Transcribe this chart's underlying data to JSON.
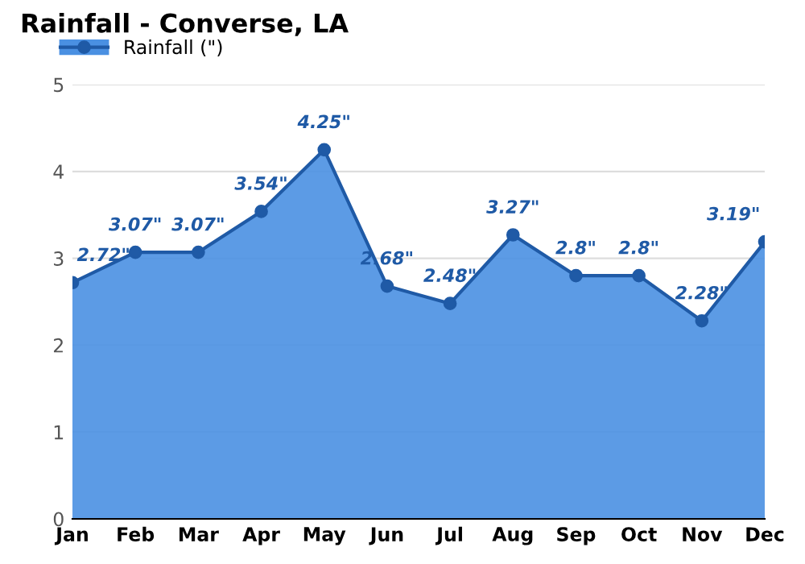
{
  "chart_data": {
    "type": "area",
    "title": "Rainfall - Converse, LA",
    "categories": [
      "Jan",
      "Feb",
      "Mar",
      "Apr",
      "May",
      "Jun",
      "Jul",
      "Aug",
      "Sep",
      "Oct",
      "Nov",
      "Dec"
    ],
    "series": [
      {
        "name": "Rainfall (\")",
        "color": "#4a90e2",
        "values": [
          2.72,
          3.07,
          3.07,
          3.54,
          4.25,
          2.68,
          2.48,
          3.27,
          2.8,
          2.8,
          2.28,
          3.19
        ],
        "value_labels": [
          "2.72\"",
          "3.07\"",
          "3.07\"",
          "3.54\"",
          "4.25\"",
          "2.68\"",
          "2.48\"",
          "3.27\"",
          "2.8\"",
          "2.8\"",
          "2.28\"",
          "3.19\""
        ]
      }
    ],
    "ylim": [
      0,
      5
    ],
    "yticks": [
      0,
      1,
      2,
      3,
      4,
      5
    ],
    "grid": "y",
    "legend": "top left",
    "marker": "circle"
  }
}
